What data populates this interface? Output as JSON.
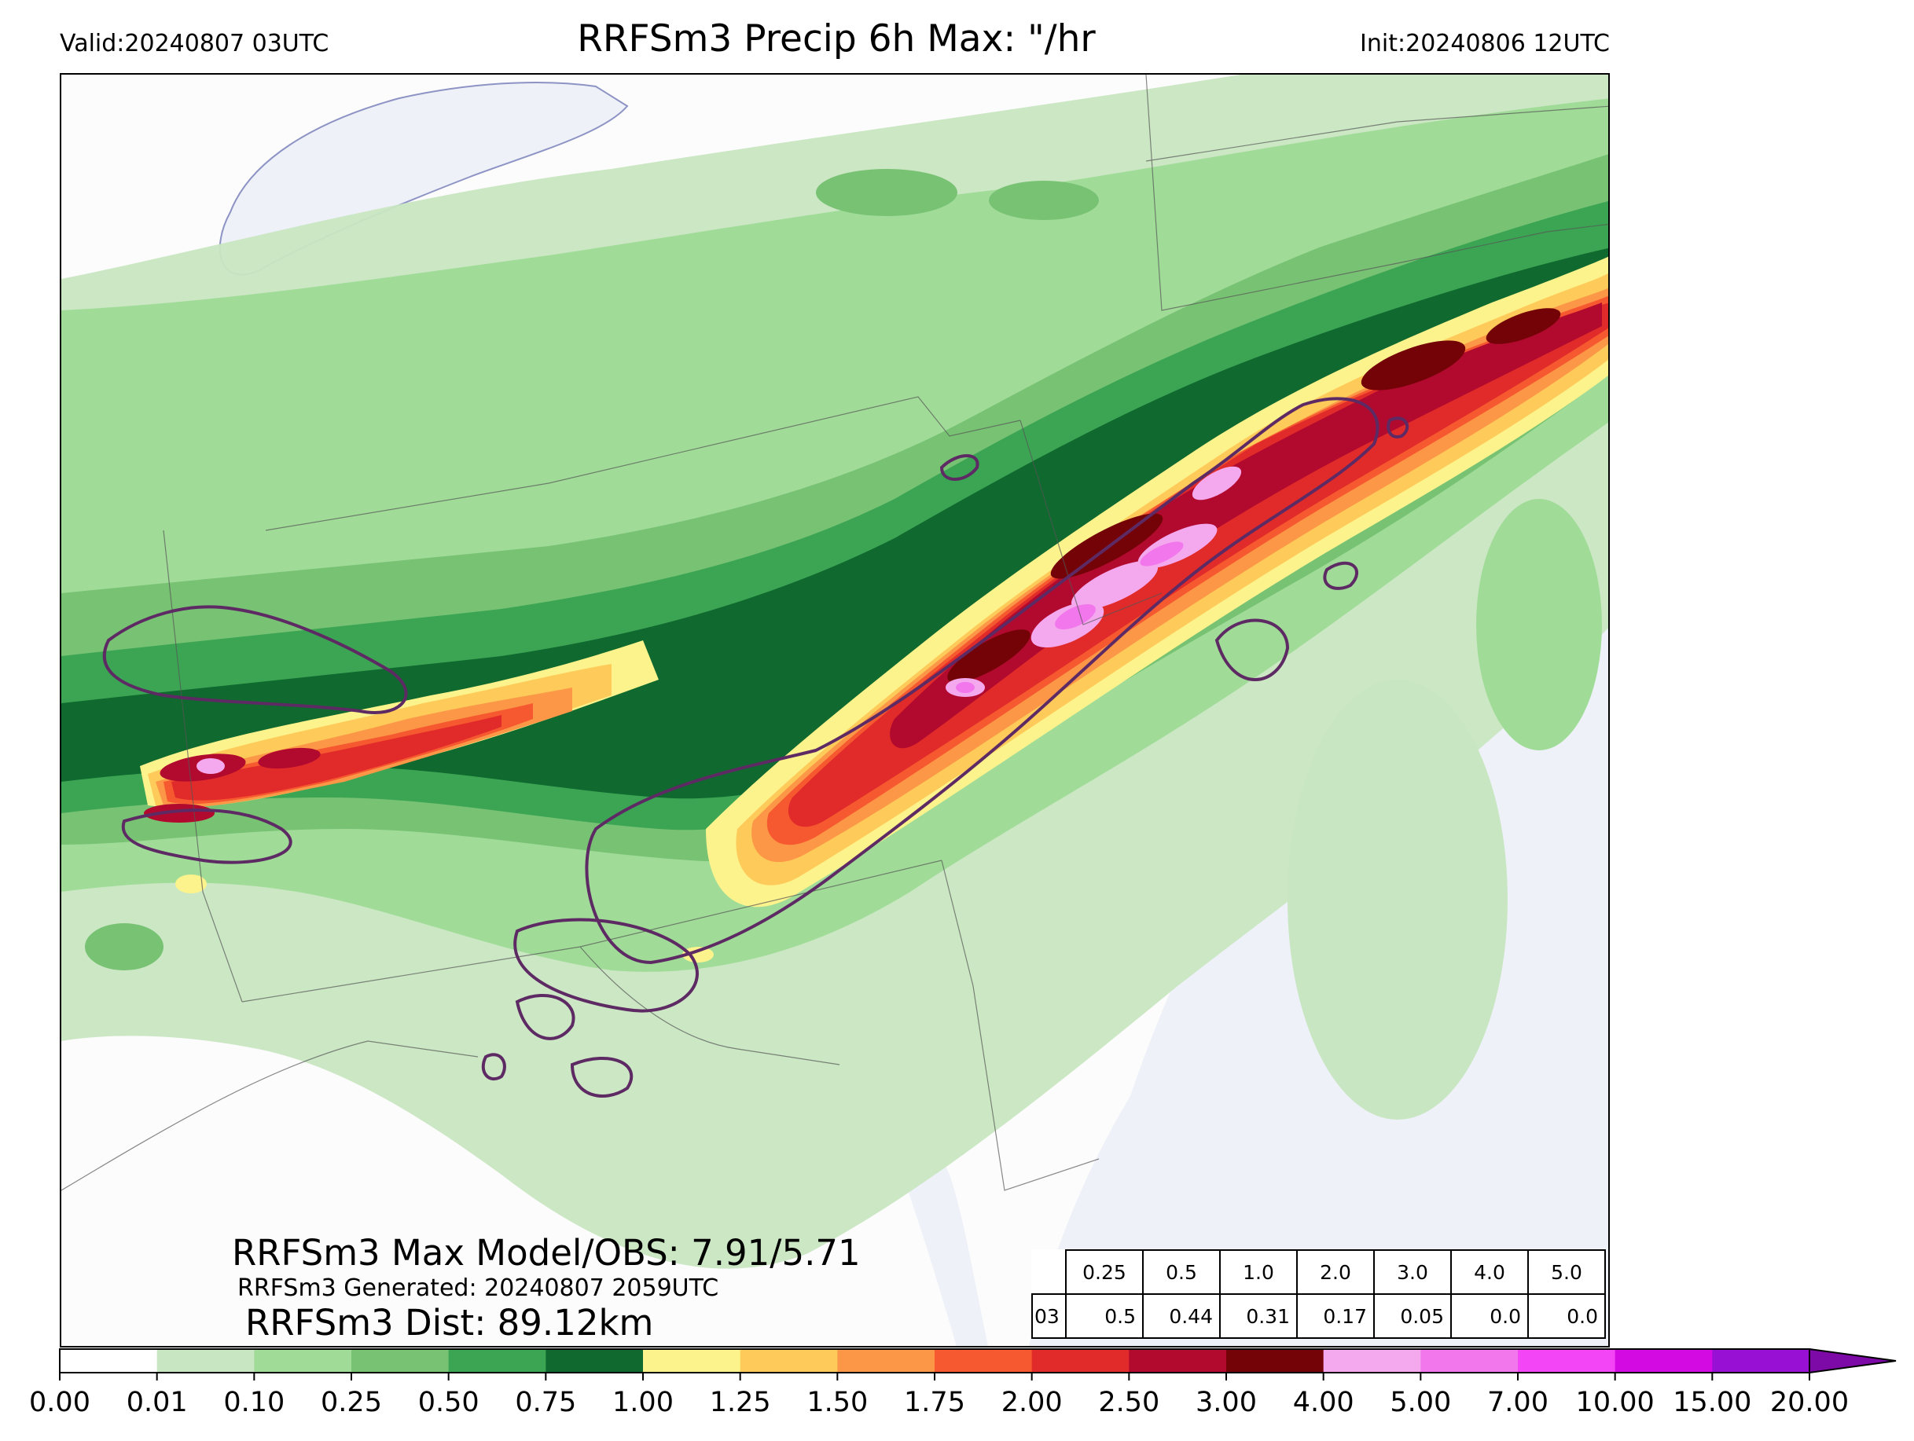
{
  "header": {
    "valid": "Valid:20240807 03UTC",
    "title": "RRFSm3 Precip 6h Max: \"/hr",
    "init": "Init:20240806 12UTC"
  },
  "stats": {
    "max_line": "RRFSm3 Max Model/OBS: 7.91/5.71",
    "generated_line": "RRFSm3 Generated: 20240807 2059UTC",
    "dist_line": "RRFSm3 Dist: 89.12km"
  },
  "threshold_table": {
    "headers": [
      "0.25",
      "0.5",
      "1.0",
      "2.0",
      "3.0",
      "4.0",
      "5.0"
    ],
    "row_label": "03",
    "values": [
      "0.5",
      "0.44",
      "0.31",
      "0.17",
      "0.05",
      "0.0",
      "0.0"
    ]
  },
  "colorbar": {
    "ticks": [
      "0.00",
      "0.01",
      "0.10",
      "0.25",
      "0.50",
      "0.75",
      "1.00",
      "1.25",
      "1.50",
      "1.75",
      "2.00",
      "2.50",
      "3.00",
      "4.00",
      "5.00",
      "7.00",
      "10.00",
      "15.00",
      "20.00"
    ],
    "colors": [
      "#ffffff",
      "#c8e6c1",
      "#a0dc98",
      "#78c274",
      "#3ba554",
      "#10692e",
      "#fdf38c",
      "#fecb5a",
      "#fc9747",
      "#f6592f",
      "#e12a2a",
      "#b10a2e",
      "#730306",
      "#f4a9ee",
      "#f276ec",
      "#f345f5",
      "#d30ae2",
      "#9710d4"
    ],
    "extend_color": "#7d0aa6"
  },
  "colors": {
    "contour": "#5e2a64",
    "water": "#eef1f8",
    "land": "#fcfcfc"
  }
}
